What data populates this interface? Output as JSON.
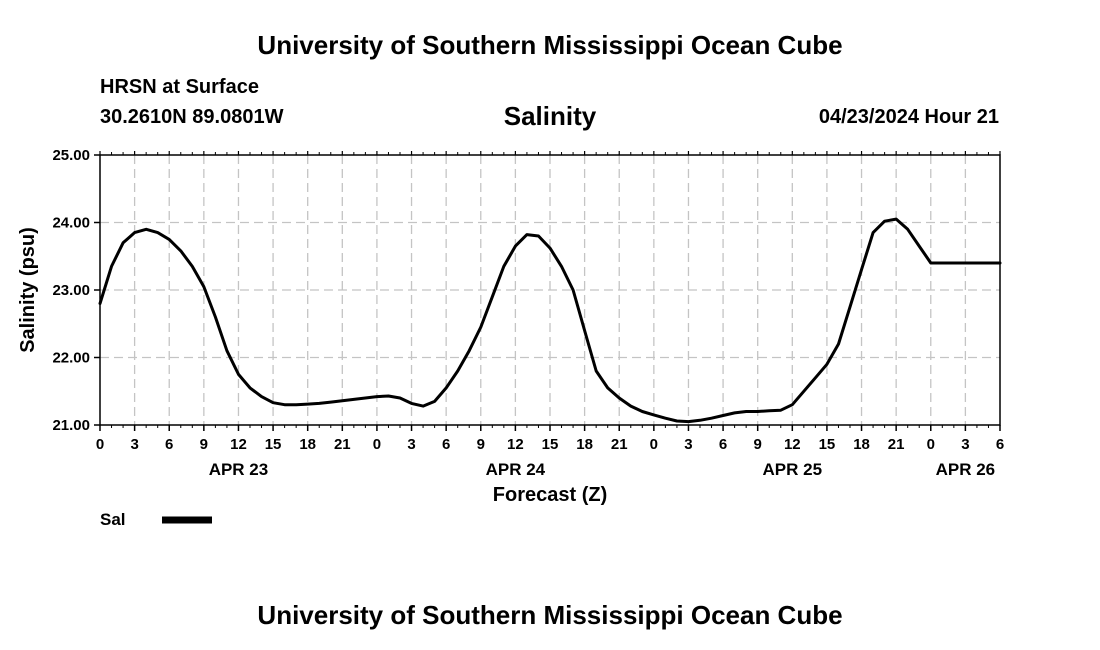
{
  "header": {
    "org_title": "University of Southern Mississippi Ocean Cube",
    "station": "HRSN at Surface",
    "coords": "30.2610N  89.0801W",
    "variable": "Salinity",
    "run_time": "04/23/2024 Hour 21"
  },
  "footer": {
    "org_title": "University of Southern Mississippi Ocean Cube"
  },
  "chart_data": {
    "type": "line",
    "title": "Salinity",
    "xlabel": "Forecast (Z)",
    "ylabel": "Salinity (psu)",
    "xlim": [
      0,
      78
    ],
    "ylim": [
      21.0,
      25.0
    ],
    "yticks": [
      21.0,
      22.0,
      23.0,
      24.0,
      25.0
    ],
    "ytick_labels": [
      "21.00",
      "22.00",
      "23.00",
      "24.00",
      "25.00"
    ],
    "xticks": [
      0,
      3,
      6,
      9,
      12,
      15,
      18,
      21,
      24,
      27,
      30,
      33,
      36,
      39,
      42,
      45,
      48,
      51,
      54,
      57,
      60,
      63,
      66,
      69,
      72,
      75,
      78
    ],
    "xtick_labels": [
      "0",
      "3",
      "6",
      "9",
      "12",
      "15",
      "18",
      "21",
      "0",
      "3",
      "6",
      "9",
      "12",
      "15",
      "18",
      "21",
      "0",
      "3",
      "6",
      "9",
      "12",
      "15",
      "18",
      "21",
      "0",
      "3",
      "6"
    ],
    "date_labels": [
      {
        "x": 12,
        "label": "APR 23"
      },
      {
        "x": 36,
        "label": "APR 24"
      },
      {
        "x": 60,
        "label": "APR 25"
      },
      {
        "x": 75,
        "label": "APR 26"
      }
    ],
    "grid": true,
    "legend": [
      {
        "name": "Sal",
        "color": "#000000"
      }
    ],
    "series": [
      {
        "name": "Sal",
        "x": [
          0,
          1,
          2,
          3,
          4,
          5,
          6,
          7,
          8,
          9,
          10,
          11,
          12,
          13,
          14,
          15,
          16,
          17,
          18,
          19,
          20,
          21,
          22,
          23,
          24,
          25,
          26,
          27,
          28,
          29,
          30,
          31,
          32,
          33,
          34,
          35,
          36,
          37,
          38,
          39,
          40,
          41,
          42,
          43,
          44,
          45,
          46,
          47,
          48,
          49,
          50,
          51,
          52,
          53,
          54,
          55,
          56,
          57,
          58,
          59,
          60,
          61,
          62,
          63,
          64,
          65,
          66,
          67,
          68,
          69,
          70,
          71,
          72,
          73,
          74,
          75,
          76,
          77,
          78
        ],
        "values": [
          22.8,
          23.35,
          23.7,
          23.85,
          23.9,
          23.85,
          23.75,
          23.58,
          23.35,
          23.05,
          22.6,
          22.1,
          21.75,
          21.55,
          21.42,
          21.33,
          21.3,
          21.3,
          21.31,
          21.32,
          21.34,
          21.36,
          21.38,
          21.4,
          21.42,
          21.43,
          21.4,
          21.32,
          21.28,
          21.35,
          21.55,
          21.8,
          22.1,
          22.45,
          22.9,
          23.35,
          23.65,
          23.82,
          23.8,
          23.62,
          23.35,
          23.0,
          22.4,
          21.8,
          21.55,
          21.4,
          21.28,
          21.2,
          21.15,
          21.1,
          21.06,
          21.05,
          21.07,
          21.1,
          21.14,
          21.18,
          21.2,
          21.2,
          21.21,
          21.22,
          21.3,
          21.5,
          21.7,
          21.9,
          22.2,
          22.75,
          23.3,
          23.85,
          24.02,
          24.05,
          23.9,
          23.65,
          23.4,
          23.4,
          23.4,
          23.4,
          23.4,
          23.4,
          23.4
        ]
      }
    ]
  }
}
